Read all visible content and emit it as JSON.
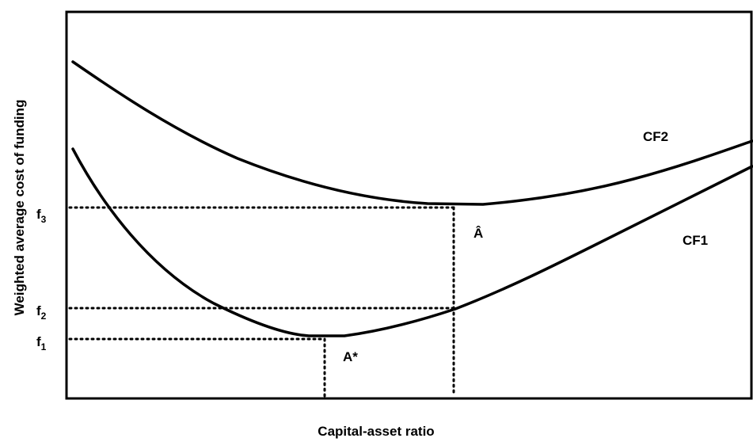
{
  "axes": {
    "y_label": "Weighted average cost of funding",
    "x_label": "Capital-asset ratio"
  },
  "curves": [
    {
      "label": "CF2"
    },
    {
      "label": "CF1"
    }
  ],
  "levels": [
    {
      "symbol": "f",
      "subscript": "3"
    },
    {
      "symbol": "f",
      "subscript": "2"
    },
    {
      "symbol": "f",
      "subscript": "1"
    }
  ],
  "points": [
    {
      "label": "Â"
    },
    {
      "label": "A*"
    }
  ]
}
